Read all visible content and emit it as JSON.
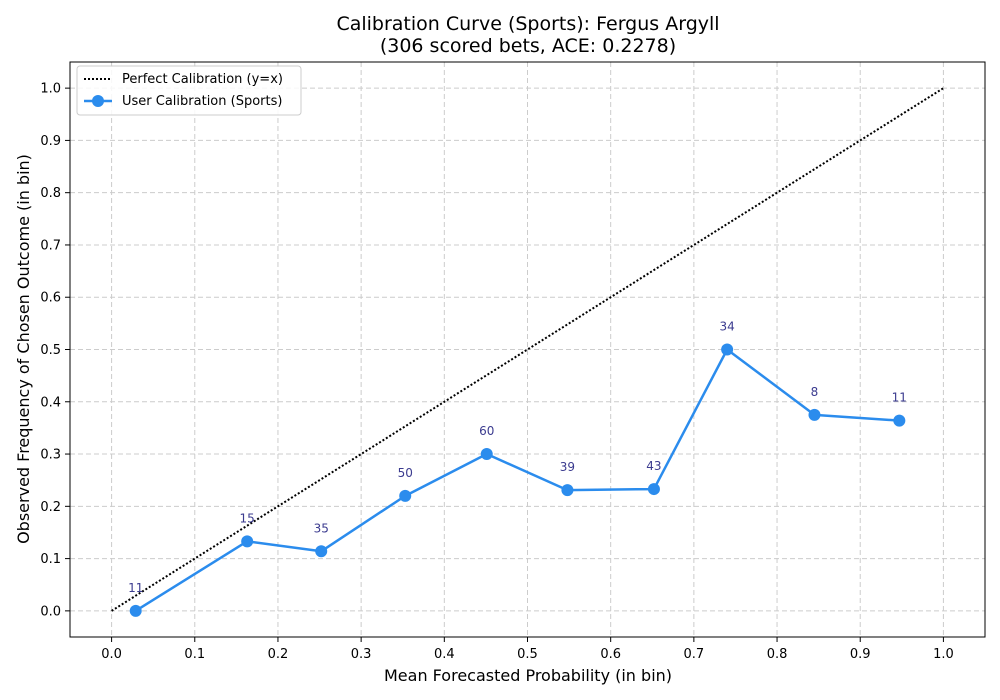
{
  "chart_data": {
    "type": "line",
    "title_line1": "Calibration Curve (Sports): Fergus Argyll",
    "title_line2": "(306 scored bets, ACE: 0.2278)",
    "xlabel": "Mean Forecasted Probability (in bin)",
    "ylabel": "Observed Frequency of Chosen Outcome (in bin)",
    "xlim": [
      -0.05,
      1.05
    ],
    "ylim": [
      -0.05,
      1.05
    ],
    "xticks": [
      "0.0",
      "0.1",
      "0.2",
      "0.3",
      "0.4",
      "0.5",
      "0.6",
      "0.7",
      "0.8",
      "0.9",
      "1.0"
    ],
    "yticks": [
      "0.0",
      "0.1",
      "0.2",
      "0.3",
      "0.4",
      "0.5",
      "0.6",
      "0.7",
      "0.8",
      "0.9",
      "1.0"
    ],
    "grid": true,
    "legend_position": "top-left",
    "series": [
      {
        "name": "Perfect Calibration (y=x)",
        "style": "dotted",
        "color": "#000000",
        "x": [
          0,
          1
        ],
        "y": [
          0,
          1
        ]
      },
      {
        "name": "User Calibration (Sports)",
        "style": "solid-with-markers",
        "color": "#2b8ced",
        "x": [
          0.029,
          0.163,
          0.252,
          0.353,
          0.451,
          0.548,
          0.652,
          0.74,
          0.845,
          0.947
        ],
        "y": [
          0.0,
          0.133,
          0.114,
          0.22,
          0.3,
          0.231,
          0.233,
          0.5,
          0.375,
          0.364
        ],
        "counts": [
          "11",
          "15",
          "35",
          "50",
          "60",
          "39",
          "43",
          "34",
          "8",
          "11"
        ]
      }
    ]
  }
}
